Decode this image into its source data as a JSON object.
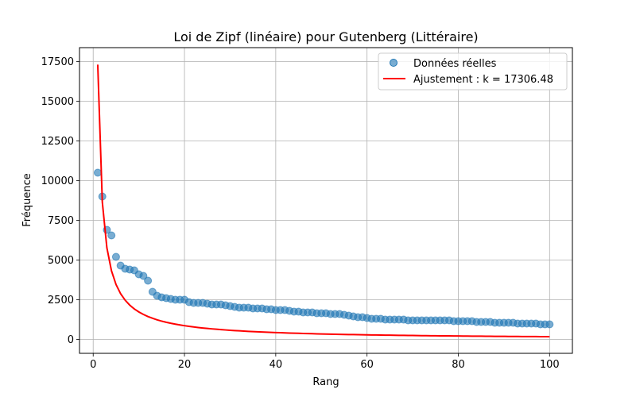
{
  "chart_data": {
    "type": "scatter",
    "title": "Loi de Zipf (linéaire) pour Gutenberg (Littéraire)",
    "xlabel": "Rang",
    "ylabel": "Fréquence",
    "xlim": [
      -3,
      105
    ],
    "ylim": [
      -875,
      18375
    ],
    "xticks": [
      0,
      20,
      40,
      60,
      80,
      100
    ],
    "yticks": [
      0,
      2500,
      5000,
      7500,
      10000,
      12500,
      15000,
      17500
    ],
    "grid": true,
    "legend_position": "top-right",
    "series": [
      {
        "name": "Données réelles",
        "kind": "scatter",
        "color": "#1f77b4",
        "x": [
          1,
          2,
          3,
          4,
          5,
          6,
          7,
          8,
          9,
          10,
          11,
          12,
          13,
          14,
          15,
          16,
          17,
          18,
          19,
          20,
          21,
          22,
          23,
          24,
          25,
          26,
          27,
          28,
          29,
          30,
          31,
          32,
          33,
          34,
          35,
          36,
          37,
          38,
          39,
          40,
          41,
          42,
          43,
          44,
          45,
          46,
          47,
          48,
          49,
          50,
          51,
          52,
          53,
          54,
          55,
          56,
          57,
          58,
          59,
          60,
          61,
          62,
          63,
          64,
          65,
          66,
          67,
          68,
          69,
          70,
          71,
          72,
          73,
          74,
          75,
          76,
          77,
          78,
          79,
          80,
          81,
          82,
          83,
          84,
          85,
          86,
          87,
          88,
          89,
          90,
          91,
          92,
          93,
          94,
          95,
          96,
          97,
          98,
          99,
          100
        ],
        "values": [
          10500,
          9000,
          6900,
          6550,
          5200,
          4650,
          4450,
          4400,
          4350,
          4100,
          4000,
          3700,
          3000,
          2750,
          2650,
          2600,
          2550,
          2500,
          2500,
          2500,
          2350,
          2300,
          2300,
          2300,
          2250,
          2200,
          2200,
          2200,
          2150,
          2100,
          2050,
          2000,
          2000,
          2000,
          1950,
          1950,
          1950,
          1900,
          1900,
          1850,
          1850,
          1850,
          1800,
          1750,
          1750,
          1700,
          1700,
          1700,
          1650,
          1650,
          1650,
          1600,
          1600,
          1600,
          1550,
          1500,
          1450,
          1400,
          1400,
          1350,
          1300,
          1300,
          1300,
          1250,
          1250,
          1250,
          1250,
          1250,
          1200,
          1200,
          1200,
          1200,
          1200,
          1200,
          1200,
          1200,
          1200,
          1200,
          1150,
          1150,
          1150,
          1150,
          1150,
          1100,
          1100,
          1100,
          1100,
          1050,
          1050,
          1050,
          1050,
          1050,
          1000,
          1000,
          1000,
          1000,
          1000,
          950,
          950,
          950
        ]
      },
      {
        "name": "Ajustement : k = 17306.48",
        "kind": "line",
        "color": "#ff0000",
        "k": 17306.48,
        "formula": "k / rang"
      }
    ]
  }
}
